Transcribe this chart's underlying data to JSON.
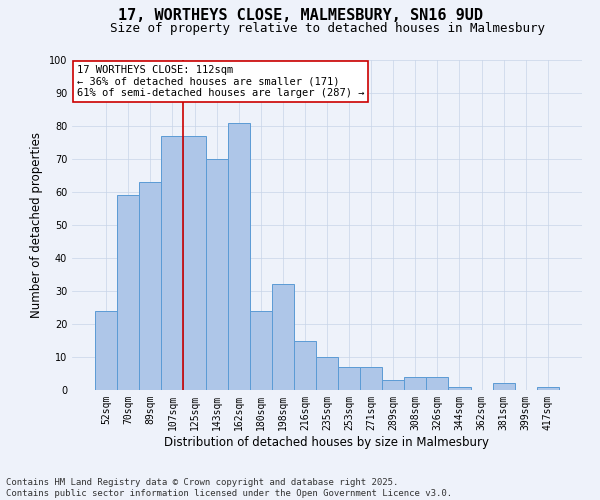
{
  "title_line1": "17, WORTHEYS CLOSE, MALMESBURY, SN16 9UD",
  "title_line2": "Size of property relative to detached houses in Malmesbury",
  "xlabel": "Distribution of detached houses by size in Malmesbury",
  "ylabel": "Number of detached properties",
  "bar_labels": [
    "52sqm",
    "70sqm",
    "89sqm",
    "107sqm",
    "125sqm",
    "143sqm",
    "162sqm",
    "180sqm",
    "198sqm",
    "216sqm",
    "235sqm",
    "253sqm",
    "271sqm",
    "289sqm",
    "308sqm",
    "326sqm",
    "344sqm",
    "362sqm",
    "381sqm",
    "399sqm",
    "417sqm"
  ],
  "bar_values": [
    24,
    59,
    63,
    77,
    77,
    70,
    81,
    24,
    32,
    15,
    10,
    7,
    7,
    3,
    4,
    4,
    1,
    0,
    2,
    0,
    1
  ],
  "bar_color": "#aec6e8",
  "bar_edge_color": "#5b9bd5",
  "vline_x_idx": 3,
  "vline_color": "#cc0000",
  "annotation_text": "17 WORTHEYS CLOSE: 112sqm\n← 36% of detached houses are smaller (171)\n61% of semi-detached houses are larger (287) →",
  "annotation_box_color": "#ffffff",
  "annotation_box_edge": "#cc0000",
  "ylim": [
    0,
    100
  ],
  "yticks": [
    0,
    10,
    20,
    30,
    40,
    50,
    60,
    70,
    80,
    90,
    100
  ],
  "grid_color": "#c8d4e8",
  "bg_color": "#eef2fa",
  "footer_line1": "Contains HM Land Registry data © Crown copyright and database right 2025.",
  "footer_line2": "Contains public sector information licensed under the Open Government Licence v3.0.",
  "title_fontsize": 11,
  "subtitle_fontsize": 9,
  "axis_label_fontsize": 8.5,
  "tick_fontsize": 7,
  "annotation_fontsize": 7.5,
  "footer_fontsize": 6.5
}
